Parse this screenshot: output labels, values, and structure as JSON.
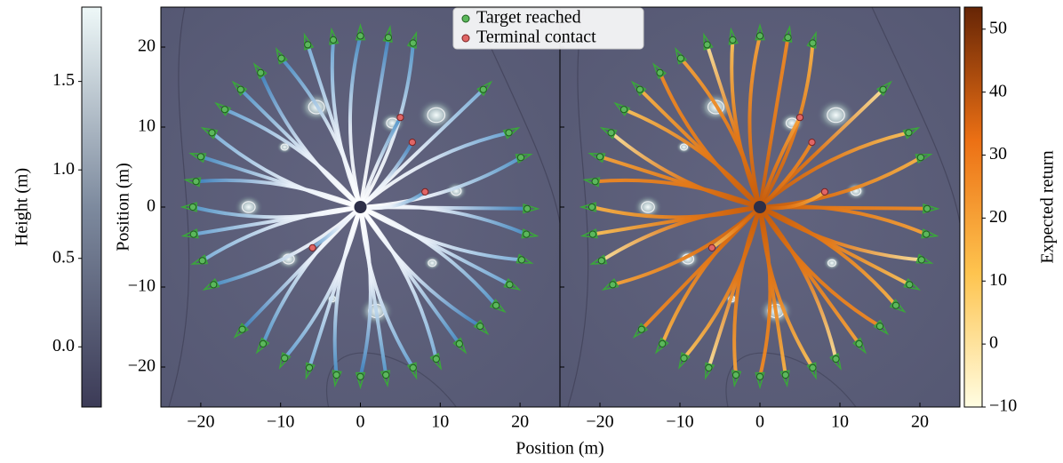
{
  "chart_data": {
    "type": "scatter",
    "xlabel": "Position (m)",
    "ylabel": "Position (m)",
    "xlim": [
      -25,
      25
    ],
    "ylim": [
      -25,
      25
    ],
    "xticks": [
      {
        "value": -20,
        "label": "−20"
      },
      {
        "value": -10,
        "label": "−10"
      },
      0,
      10,
      20
    ],
    "yticks": [
      {
        "value": -20,
        "label": "−20"
      },
      {
        "value": -10,
        "label": "−10"
      },
      0,
      10,
      20
    ],
    "series": [
      {
        "name": "Target reached",
        "color": "#5cb85c",
        "x": [
          0,
          3.5,
          6.6,
          -3.4,
          -6.6,
          -9.9,
          -12.5,
          -15,
          -17,
          -18.6,
          -20,
          -20.6,
          -21,
          -20.9,
          -19.8,
          -18.4,
          -14.8,
          -12.2,
          -9.5,
          -6.4,
          -3,
          0,
          3.2,
          6.6,
          9.5,
          12.4,
          15,
          17,
          18.7,
          20.2,
          20.8,
          20.9,
          20.1,
          18.6,
          15.4
        ],
        "y": [
          21.4,
          21.2,
          20.5,
          20.9,
          20.3,
          18.6,
          16.8,
          14.7,
          12.2,
          9.3,
          6.3,
          3.2,
          0,
          -3.4,
          -6.7,
          -9.7,
          -15.3,
          -17.1,
          -18.9,
          -20.1,
          -21,
          -21.2,
          -21,
          -20.1,
          -19,
          -17.1,
          -14.9,
          -12.3,
          -9.7,
          -6.6,
          -3.4,
          -0.2,
          6.2,
          9.3,
          14.7
        ]
      },
      {
        "name": "Terminal contact",
        "color": "#e06666",
        "x": [
          5,
          6.5,
          8.1,
          -6
        ],
        "y": [
          11.2,
          8.1,
          1.9,
          -5.1
        ]
      }
    ],
    "colorbars": [
      {
        "label": "Height (m)",
        "ylim": [
          -0.34,
          1.92
        ],
        "yticks": [
          0.0,
          0.5,
          1.0,
          1.5
        ],
        "tick_labels": [
          "0.0",
          "0.5",
          "1.0",
          "1.5"
        ],
        "colors": [
          "#3c3b57",
          "#7d8a9e",
          "#eef8f8"
        ]
      },
      {
        "label": "Expected return",
        "ylim": [
          -10,
          53.5
        ],
        "yticks": [
          {
            "value": -10,
            "label": "−10"
          },
          0,
          10,
          20,
          30,
          40,
          50
        ],
        "colors": [
          "#fffde2",
          "#fec44f",
          "#ec7014",
          "#662506"
        ]
      }
    ]
  }
}
